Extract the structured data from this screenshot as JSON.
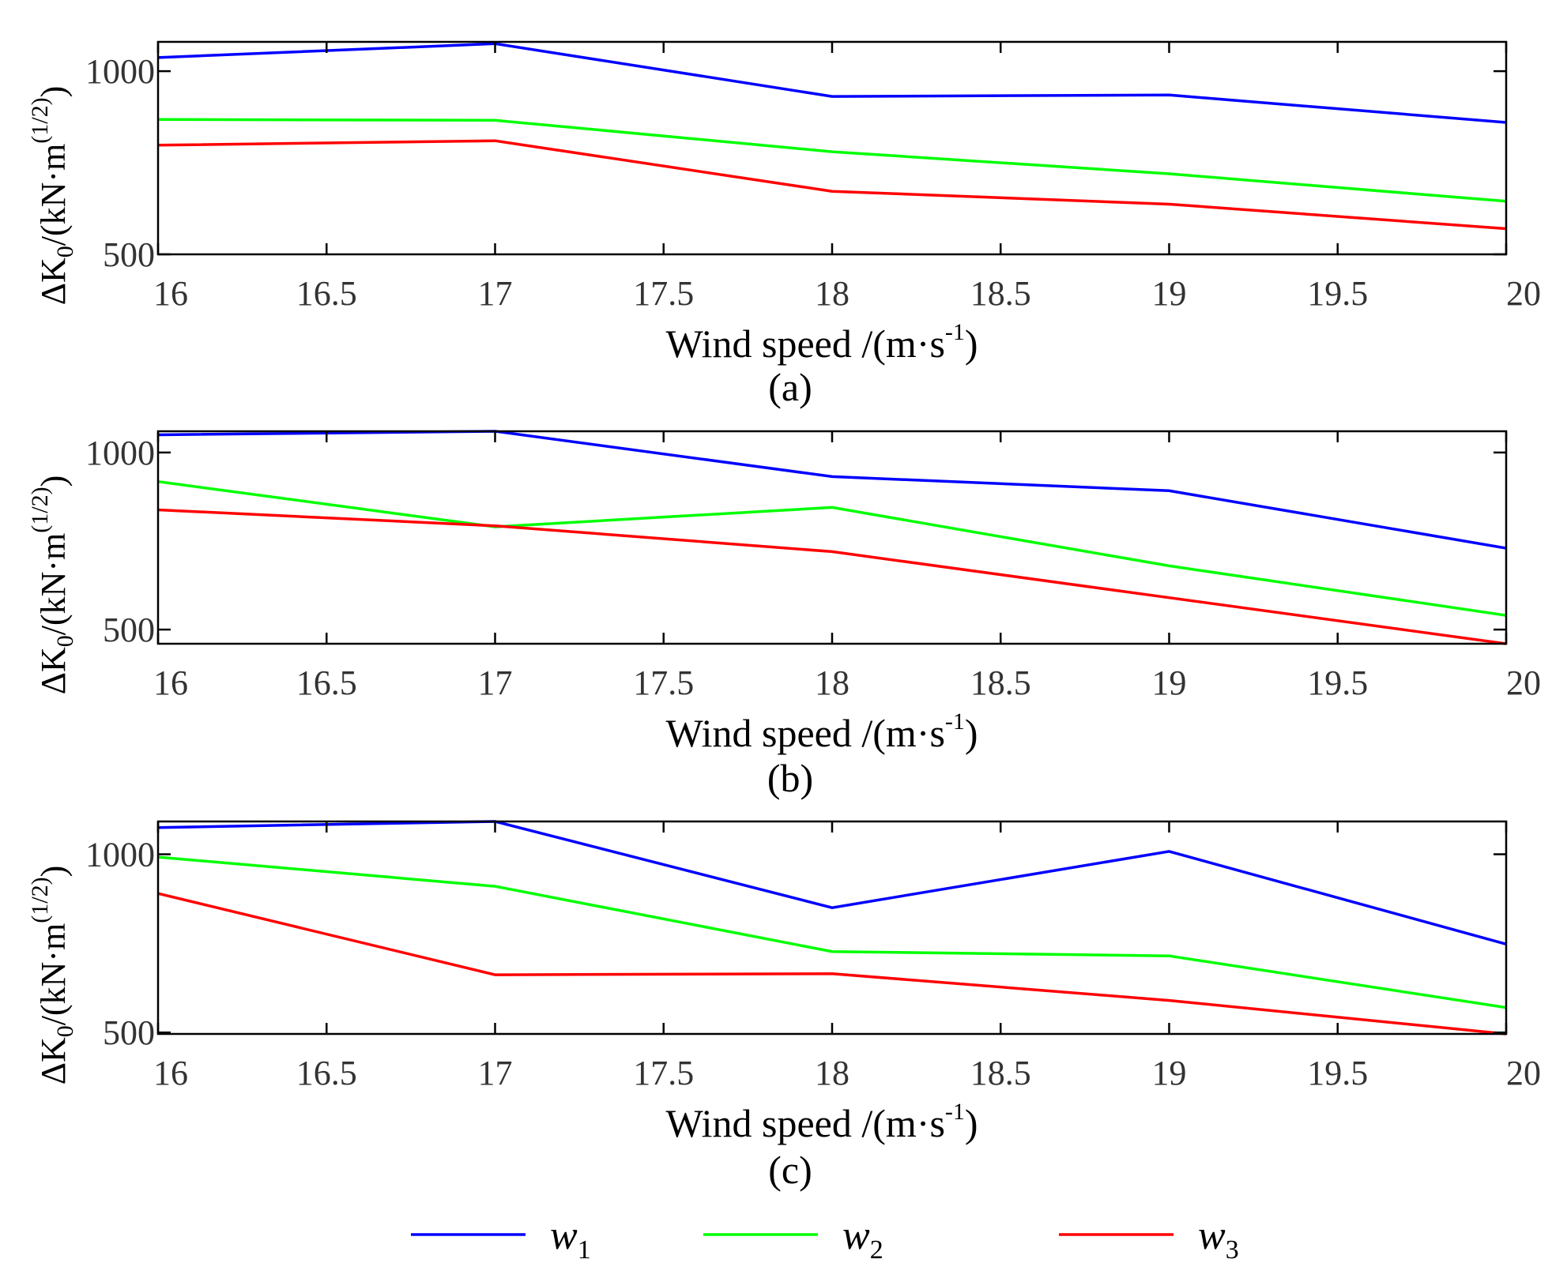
{
  "chart_data": [
    {
      "type": "line",
      "caption": "(a)",
      "x": [
        16,
        17,
        18,
        19,
        20
      ],
      "series": [
        {
          "name": "w1",
          "values": [
            1037,
            1075,
            931,
            935,
            860
          ]
        },
        {
          "name": "w2",
          "values": [
            868,
            866,
            780,
            720,
            645
          ]
        },
        {
          "name": "w3",
          "values": [
            798,
            810,
            672,
            637,
            570
          ]
        }
      ],
      "xlim": [
        16,
        20
      ],
      "ylim": [
        500,
        1080
      ],
      "xticks": [
        "16",
        "16.5",
        "17",
        "17.5",
        "18",
        "18.5",
        "19",
        "19.5",
        "20"
      ],
      "yticks": [
        "500",
        "1000"
      ],
      "xlabel": "Wind speed /(m·s",
      "xlabel_sup": "-1",
      "xlabel_end": ")",
      "ylabel": "ΔK",
      "ylabel_sub": "0",
      "ylabel_mid": "/(kN·m",
      "ylabel_sup": "(1/2)",
      "ylabel_end": ")"
    },
    {
      "type": "line",
      "caption": "(b)",
      "x": [
        16,
        17,
        18,
        19,
        20
      ],
      "series": [
        {
          "name": "w1",
          "values": [
            1050,
            1060,
            932,
            892,
            730
          ]
        },
        {
          "name": "w2",
          "values": [
            918,
            790,
            845,
            680,
            540
          ]
        },
        {
          "name": "w3",
          "values": [
            838,
            793,
            720,
            590,
            460
          ]
        }
      ],
      "xlim": [
        16,
        20
      ],
      "ylim": [
        460,
        1060
      ],
      "xticks": [
        "16",
        "16.5",
        "17",
        "17.5",
        "18",
        "18.5",
        "19",
        "19.5",
        "20"
      ],
      "yticks": [
        "500",
        "1000"
      ],
      "xlabel": "Wind speed /(m·s",
      "xlabel_sup": "-1",
      "xlabel_end": ")",
      "ylabel": "ΔK",
      "ylabel_sub": "0",
      "ylabel_mid": "/(kN·m",
      "ylabel_sup": "(1/2)",
      "ylabel_end": ")"
    },
    {
      "type": "line",
      "caption": "(c)",
      "x": [
        16,
        17,
        18,
        19,
        20
      ],
      "series": [
        {
          "name": "w1",
          "values": [
            1075,
            1092,
            850,
            1008,
            748
          ]
        },
        {
          "name": "w2",
          "values": [
            992,
            910,
            727,
            715,
            570
          ]
        },
        {
          "name": "w3",
          "values": [
            890,
            662,
            665,
            590,
            496
          ]
        }
      ],
      "xlim": [
        16,
        20
      ],
      "ylim": [
        496,
        1092
      ],
      "xticks": [
        "16",
        "16.5",
        "17",
        "17.5",
        "18",
        "18.5",
        "19",
        "19.5",
        "20"
      ],
      "yticks": [
        "500",
        "1000"
      ],
      "xlabel": "Wind speed /(m·s",
      "xlabel_sup": "-1",
      "xlabel_end": ")",
      "ylabel": "ΔK",
      "ylabel_sub": "0",
      "ylabel_mid": "/(kN·m",
      "ylabel_sup": "(1/2)",
      "ylabel_end": ")"
    }
  ],
  "legend": [
    {
      "name": "w",
      "sub": "1",
      "color": "#0000ff"
    },
    {
      "name": "w",
      "sub": "2",
      "color": "#00ff00"
    },
    {
      "name": "w",
      "sub": "3",
      "color": "#ff0000"
    }
  ],
  "colors": {
    "w1": "#0000ff",
    "w2": "#00ff00",
    "w3": "#ff0000",
    "axis": "#000000"
  }
}
